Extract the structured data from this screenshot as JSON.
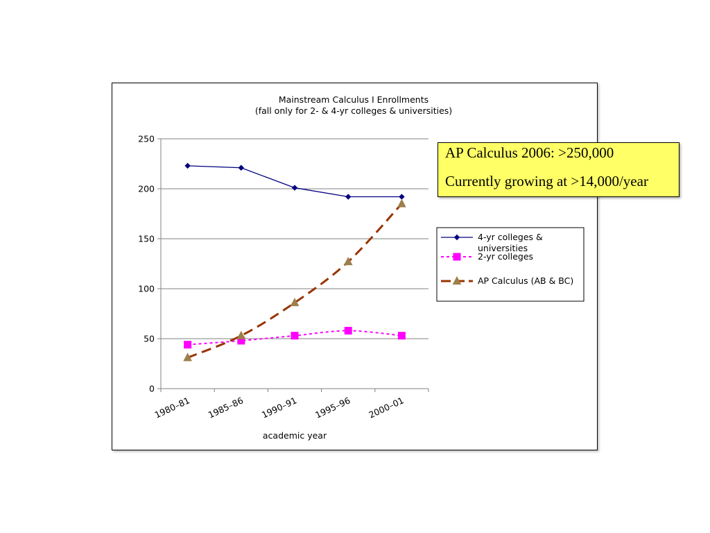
{
  "chart_data": {
    "type": "line",
    "title": "Mainstream Calculus I Enrollments",
    "subtitle": "(fall only for 2- & 4-yr colleges & universities)",
    "xlabel": "academic year",
    "ylabel": "",
    "categories": [
      "1980–81",
      "1985–86",
      "1990–91",
      "1995–96",
      "2000–01"
    ],
    "ylim": [
      0,
      250
    ],
    "yticks": [
      "0",
      "50",
      "100",
      "150",
      "200",
      "250"
    ],
    "grid": true,
    "legend_position": "right",
    "series": [
      {
        "name": "4-yr colleges & universities",
        "name_lines": [
          "4-yr colleges &",
          "universities"
        ],
        "values": [
          223,
          221,
          201,
          192,
          192
        ],
        "color": "#000080",
        "marker": "diamond",
        "line_style": "solid"
      },
      {
        "name": "2-yr colleges",
        "name_lines": [
          "2-yr colleges"
        ],
        "values": [
          44,
          48,
          53,
          58,
          53
        ],
        "color": "#ff00ff",
        "marker": "square",
        "line_style": "dotted"
      },
      {
        "name": "AP Calculus (AB & BC)",
        "name_lines": [
          "AP Calculus (AB & BC)"
        ],
        "values": [
          31,
          53,
          86,
          127,
          185
        ],
        "color": "#993300",
        "marker_color": "#9c7f4a",
        "marker": "triangle",
        "line_style": "dashed"
      }
    ]
  },
  "callout": {
    "line1": "AP Calculus 2006: >250,000",
    "line2": "Currently growing at >14,000/year",
    "background": "#ffff66"
  }
}
